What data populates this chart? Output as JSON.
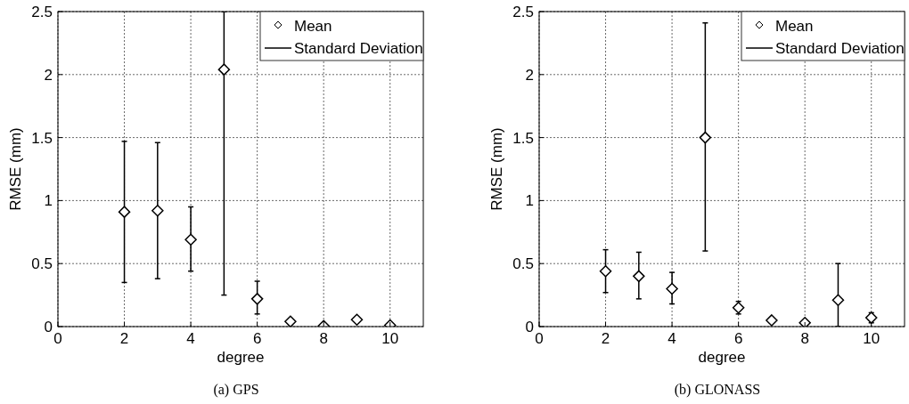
{
  "chart_data": [
    {
      "type": "scatter",
      "title": "(a)  GPS",
      "xlabel": "degree",
      "ylabel": "RMSE (mm)",
      "x": [
        2,
        3,
        4,
        5,
        6,
        7,
        8,
        9,
        10
      ],
      "series": [
        {
          "name": "Mean",
          "color": "#000000",
          "values": [
            0.91,
            0.92,
            0.69,
            2.04,
            0.22,
            0.04,
            0.005,
            0.055,
            0.01
          ],
          "errors": [
            [
              0.35,
              1.47
            ],
            [
              0.38,
              1.46
            ],
            [
              0.44,
              0.95
            ],
            [
              0.25,
              2.5
            ],
            [
              0.1,
              0.36
            ],
            [
              0.02,
              0.06
            ],
            [
              0,
              0.015
            ],
            [
              0.04,
              0.07
            ],
            [
              0,
              0.02
            ]
          ]
        }
      ],
      "annotations": [
        "Standard Deviation"
      ],
      "marker": "diamond",
      "legend": "top right",
      "grid": true,
      "xlim": [
        0,
        11
      ],
      "xticks": [
        0,
        2,
        4,
        6,
        8,
        10
      ],
      "ylim": [
        0,
        2.5
      ],
      "yticks": [
        0,
        0.5,
        1,
        1.5,
        2,
        2.5
      ]
    },
    {
      "type": "scatter",
      "title": "(b)  GLONASS",
      "xlabel": "degree",
      "ylabel": "RMSE (mm)",
      "x": [
        2,
        3,
        4,
        5,
        6,
        7,
        8,
        9,
        10
      ],
      "series": [
        {
          "name": "Mean",
          "color": "#000000",
          "values": [
            0.44,
            0.4,
            0.3,
            1.5,
            0.15,
            0.05,
            0.03,
            0.21,
            0.07
          ],
          "errors": [
            [
              0.27,
              0.61
            ],
            [
              0.22,
              0.59
            ],
            [
              0.18,
              0.43
            ],
            [
              0.6,
              2.41
            ],
            [
              0.1,
              0.2
            ],
            [
              0.03,
              0.06
            ],
            [
              0.01,
              0.04
            ],
            [
              0,
              0.5
            ],
            [
              0.03,
              0.11
            ]
          ]
        }
      ],
      "annotations": [
        "Standard Deviation"
      ],
      "marker": "diamond",
      "legend": "top right",
      "grid": true,
      "xlim": [
        0,
        11
      ],
      "xticks": [
        0,
        2,
        4,
        6,
        8,
        10
      ],
      "ylim": [
        0,
        2.5
      ],
      "yticks": [
        0,
        0.5,
        1,
        1.5,
        2,
        2.5
      ]
    }
  ]
}
